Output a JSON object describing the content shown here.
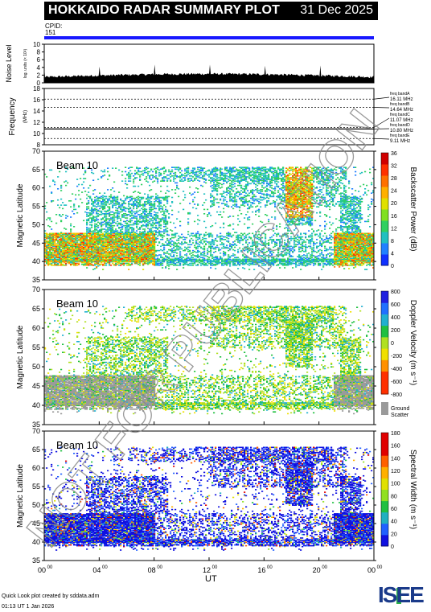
{
  "header": {
    "title": "HOKKAIDO RADAR SUMMARY PLOT",
    "date": "31 Dec 2025"
  },
  "cpid": {
    "label": "CPID:",
    "value": "151"
  },
  "noise_panel": {
    "ylabel_main": "Noise Level",
    "ylabel_sub": "log. units (× 10²)",
    "yticks": [
      "0",
      "2",
      "4",
      "6",
      "8",
      "10"
    ]
  },
  "freq_panel": {
    "ylabel_main": "Frequency",
    "ylabel_sub": "(MHz)",
    "yticks": [
      "8",
      "10",
      "12",
      "14",
      "16",
      "18"
    ],
    "bands": [
      {
        "label": "freq bandA",
        "value": "16.11 MHz",
        "freq": 16.11
      },
      {
        "label": "freq bandB",
        "value": "14.64 MHz",
        "freq": 14.64
      },
      {
        "label": "freq bandC",
        "value": "11.07 MHz",
        "freq": 11.07
      },
      {
        "label": "freq bandD",
        "value": "10.80 MHz",
        "freq": 10.8
      },
      {
        "label": "freq bandE",
        "value": "9.11 MHz",
        "freq": 9.11
      }
    ]
  },
  "beam_label": "Beam 10",
  "lat_axis": {
    "label": "Magnetic Latitude",
    "ticks": [
      "35",
      "40",
      "45",
      "50",
      "55",
      "60",
      "65",
      "70"
    ]
  },
  "x_axis": {
    "label": "UT",
    "ticks": [
      {
        "h": "00",
        "m": "00"
      },
      {
        "h": "04",
        "m": "00"
      },
      {
        "h": "08",
        "m": "00"
      },
      {
        "h": "12",
        "m": "00"
      },
      {
        "h": "16",
        "m": "00"
      },
      {
        "h": "20",
        "m": "00"
      },
      {
        "h": "00",
        "m": "00"
      }
    ]
  },
  "power_bar": {
    "label": "Backscatter Power (dB)",
    "ticks": [
      "0",
      "4",
      "8",
      "12",
      "16",
      "20",
      "24",
      "28",
      "32",
      "36"
    ]
  },
  "velocity_bar": {
    "label": "Doppler Velocity (m s⁻¹)",
    "ticks": [
      "-800",
      "-600",
      "-400",
      "-200",
      "0",
      "200",
      "400",
      "600",
      "800"
    ],
    "ground_label": "Ground",
    "ground_label2": "Scatter"
  },
  "width_bar": {
    "label": "Spectral Width (m s⁻¹)",
    "ticks": [
      "0",
      "20",
      "40",
      "60",
      "80",
      "100",
      "120",
      "140",
      "160",
      "180"
    ]
  },
  "watermark": "NOT FOR PUBLICATION",
  "footer": {
    "line1": "Quick Look plot created by sddata.adm",
    "line2": "01:13 UT 1 Jan 2026"
  },
  "logo": "ISEE",
  "colors": {
    "header_bg": "#000000",
    "cpid_bar": "#1818ff",
    "ground_scatter": "#9a9a9a",
    "logo_green": "#2db34a",
    "logo_blue": "#1a3a8a"
  },
  "chart_data": [
    {
      "type": "line",
      "title": "Noise Level",
      "xlabel": "UT",
      "ylabel": "Noise Level",
      "xlim": [
        0,
        24
      ],
      "ylim": [
        0,
        10
      ],
      "grid": false
    },
    {
      "type": "line",
      "title": "Frequency",
      "xlabel": "UT",
      "ylabel": "Frequency (MHz)",
      "xlim": [
        0,
        24
      ],
      "ylim": [
        8,
        18
      ],
      "grid": true
    },
    {
      "type": "heatmap",
      "title": "Backscatter Power (dB)",
      "xlabel": "UT",
      "ylabel": "Magnetic Latitude",
      "xlim": [
        0,
        24
      ],
      "ylim": [
        35,
        70
      ],
      "zlim": [
        0,
        36
      ]
    },
    {
      "type": "heatmap",
      "title": "Doppler Velocity (m s⁻¹)",
      "xlabel": "UT",
      "ylabel": "Magnetic Latitude",
      "xlim": [
        0,
        24
      ],
      "ylim": [
        35,
        70
      ],
      "zlim": [
        -800,
        800
      ]
    },
    {
      "type": "heatmap",
      "title": "Spectral Width (m s⁻¹)",
      "xlabel": "UT",
      "ylabel": "Magnetic Latitude",
      "xlim": [
        0,
        24
      ],
      "ylim": [
        35,
        70
      ],
      "zlim": [
        0,
        180
      ]
    }
  ]
}
